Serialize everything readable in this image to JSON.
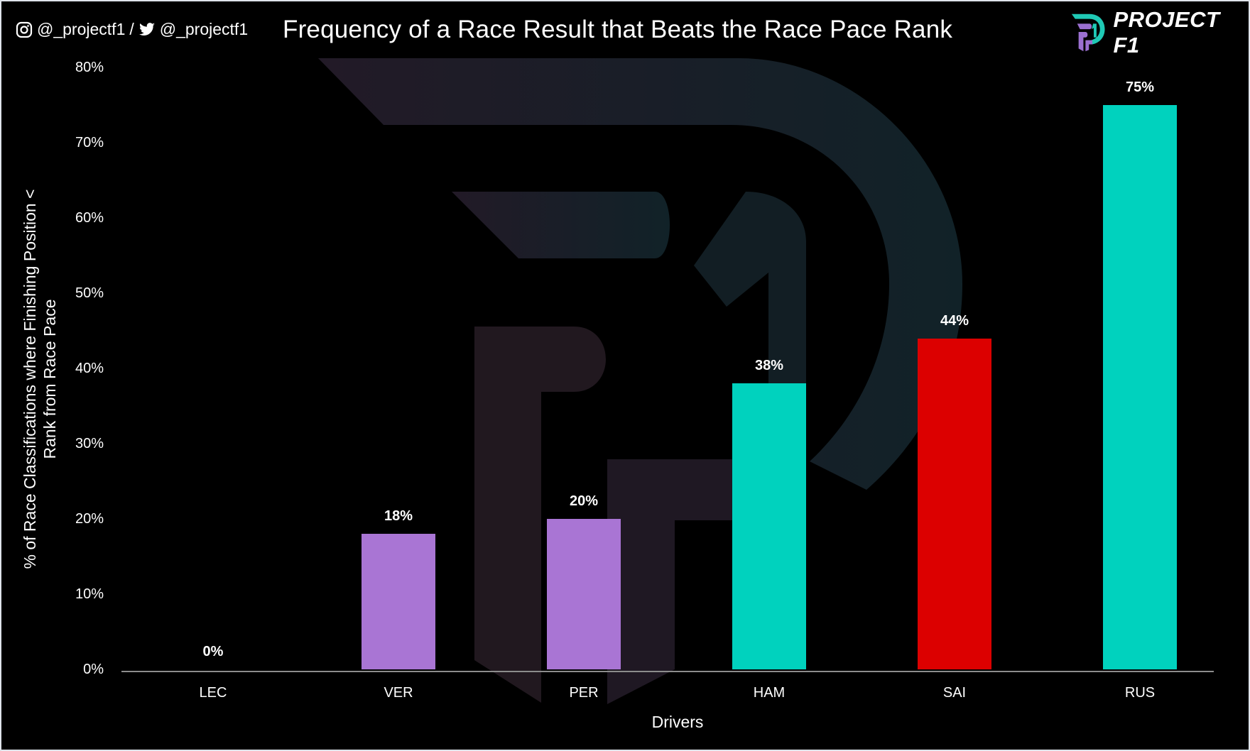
{
  "header": {
    "instagram_handle": "@_projectf1",
    "separator": "/",
    "twitter_handle": "@_projectf1",
    "title": "Frequency of a Race Result that Beats the Race Pace Rank",
    "brand": "PROJECT F1"
  },
  "colors": {
    "background": "#000000",
    "ferrari": "#dc0000",
    "red_bull": "#a975d4",
    "mercedes": "#00d2be",
    "axis": "#8c8c8c",
    "text": "#ffffff"
  },
  "chart_data": {
    "type": "bar",
    "title": "Frequency of a Race Result that Beats the Race Pace Rank",
    "xlabel": "Drivers",
    "ylabel": "% of Race Classifications where Finishing Position < Rank from Race Pace",
    "categories": [
      "LEC",
      "VER",
      "PER",
      "HAM",
      "SAI",
      "RUS"
    ],
    "values": [
      0,
      18,
      20,
      38,
      44,
      75
    ],
    "value_labels": [
      "0%",
      "18%",
      "20%",
      "38%",
      "44%",
      "75%"
    ],
    "bar_colors": [
      "#dc0000",
      "#a975d4",
      "#a975d4",
      "#00d2be",
      "#dc0000",
      "#00d2be"
    ],
    "ylim": [
      0,
      80
    ],
    "yticks": [
      "0%",
      "10%",
      "20%",
      "30%",
      "40%",
      "50%",
      "60%",
      "70%",
      "80%"
    ],
    "grid": false,
    "legend": "none"
  }
}
